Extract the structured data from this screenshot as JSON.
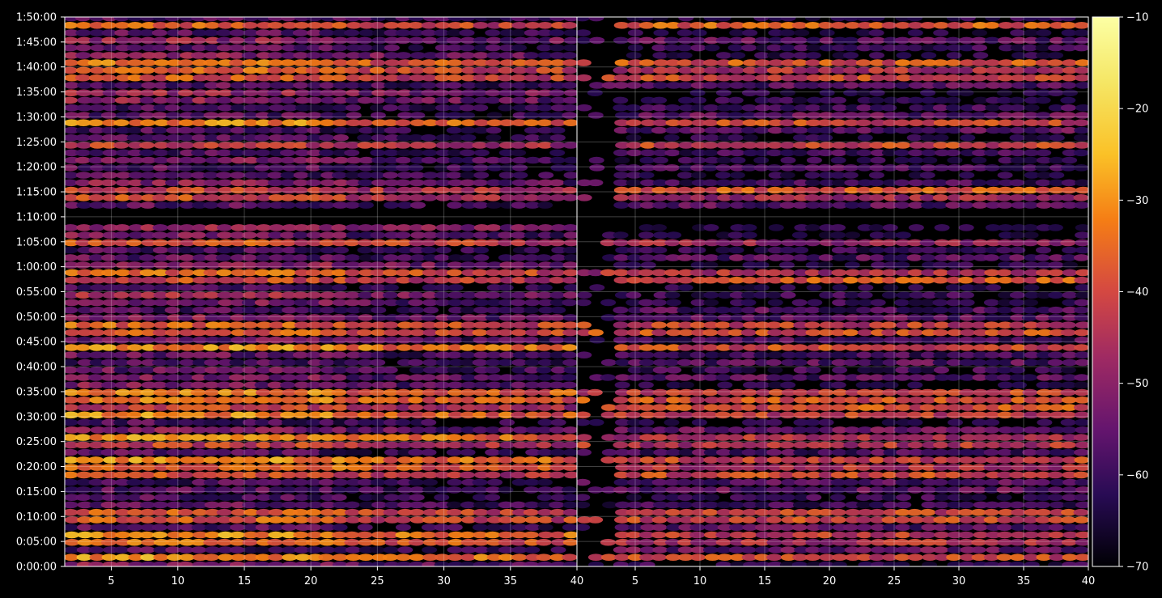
{
  "chart_data": {
    "type": "heatmap",
    "title": "",
    "xlabel": "",
    "ylabel": "",
    "panels": [
      {
        "name": "",
        "xlim": [
          1.5,
          40
        ],
        "xticks": [
          5,
          10,
          15,
          20,
          25,
          30,
          35,
          40
        ]
      },
      {
        "name": "",
        "xlim": [
          0.5,
          40
        ],
        "xticks": [
          5,
          10,
          15,
          20,
          25,
          30,
          35,
          40
        ]
      }
    ],
    "ylim_seconds": [
      0,
      6600
    ],
    "ytick_labels": [
      "0:00:00",
      "0:05:00",
      "0:10:00",
      "0:15:00",
      "0:20:00",
      "0:25:00",
      "0:30:00",
      "0:35:00",
      "0:40:00",
      "0:45:00",
      "0:50:00",
      "0:55:00",
      "1:00:00",
      "1:05:00",
      "1:10:00",
      "1:15:00",
      "1:20:00",
      "1:25:00",
      "1:30:00",
      "1:35:00",
      "1:40:00",
      "1:45:00",
      "1:50:00"
    ],
    "grid": true,
    "colorbar": {
      "min": -70,
      "max": -10,
      "ticks": [
        -70,
        -60,
        -50,
        -40,
        -30,
        -20,
        -10
      ],
      "tick_labels": [
        "−70",
        "−60",
        "−50",
        "−40",
        "−30",
        "−20",
        "−10"
      ],
      "colormap": "inferno",
      "position": "right"
    },
    "bright_rows_minutes": [
      1.5,
      5.5,
      10,
      18,
      20,
      24.5,
      30.5,
      33.5,
      43.5,
      47.5,
      57.5,
      64.5,
      74.5,
      84,
      88.5,
      97.5,
      100,
      108
    ],
    "gap_minutes": [
      68,
      72
    ]
  },
  "colors": {
    "background": "#000000",
    "axis": "#ffffff",
    "grid": "#ffffff"
  }
}
